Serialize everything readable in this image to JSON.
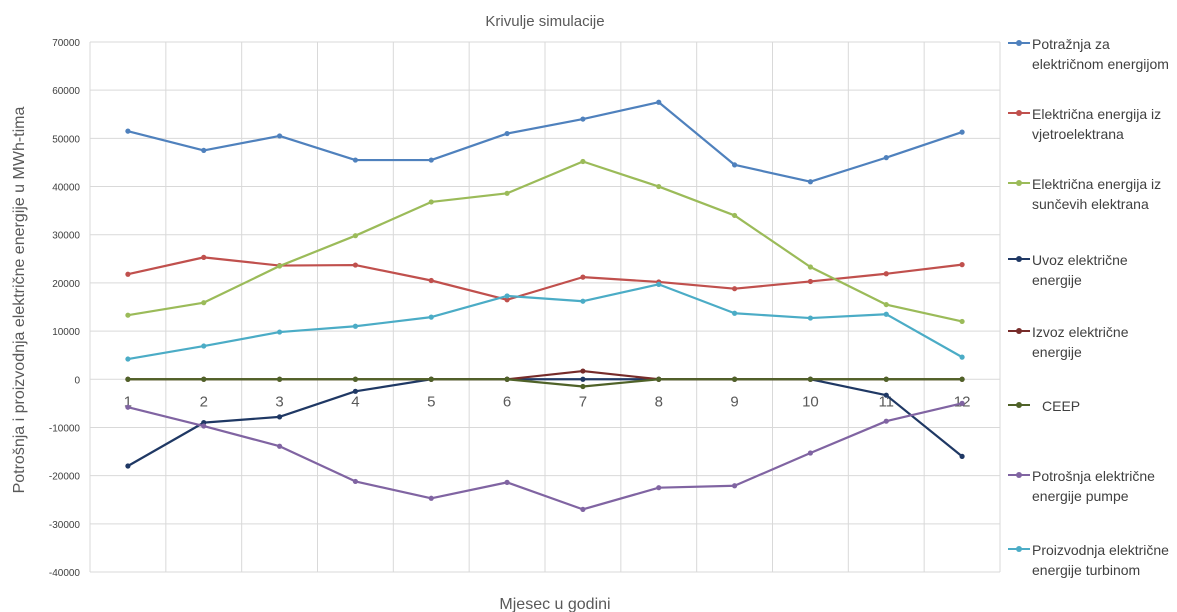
{
  "chart_data": {
    "type": "line",
    "title": "Krivulje simulacije",
    "xlabel": "Mjesec u godini",
    "ylabel": "Potrošnja  i proizvodnja električne energije u MWh-tima",
    "categories": [
      "1",
      "2",
      "3",
      "4",
      "5",
      "6",
      "7",
      "8",
      "9",
      "10",
      "11",
      "12"
    ],
    "ylim": [
      -40000,
      70000
    ],
    "yticks": [
      -40000,
      -30000,
      -20000,
      -10000,
      0,
      10000,
      20000,
      30000,
      40000,
      50000,
      60000,
      70000
    ],
    "ytick_labels": [
      "-40000",
      "-30000",
      "-20000",
      "-10000",
      "0",
      "10000",
      "20000",
      "30000",
      "40000",
      "50000",
      "60000",
      "70000"
    ],
    "grid": "both",
    "legend_position": "right",
    "series": [
      {
        "name": "Potražnja za električnom energijom",
        "color": "#4f81bd",
        "values": [
          51500,
          47500,
          50500,
          45500,
          45500,
          51000,
          54000,
          57500,
          44500,
          41000,
          46000,
          51300
        ]
      },
      {
        "name": "Električna energija iz vjetroelektrana",
        "color": "#c0504d",
        "values": [
          21800,
          25300,
          23600,
          23700,
          20500,
          16500,
          21200,
          20200,
          18800,
          20300,
          21900,
          23800
        ]
      },
      {
        "name": "Električna energija iz sunčevih elektrana",
        "color": "#9bbb59",
        "values": [
          13300,
          15900,
          23500,
          29800,
          36800,
          38600,
          45200,
          40000,
          34000,
          23300,
          15500,
          12000
        ]
      },
      {
        "name": "Uvoz električne energije",
        "color": "#1f3864",
        "values": [
          -18000,
          -9000,
          -7800,
          -2500,
          0,
          0,
          0,
          0,
          0,
          0,
          -3300,
          -16000
        ]
      },
      {
        "name": "Izvoz električne energije",
        "color": "#772c2a",
        "values": [
          0,
          0,
          0,
          0,
          0,
          0,
          1700,
          0,
          0,
          0,
          0,
          0
        ]
      },
      {
        "name": "CEEP",
        "color": "#4f6228",
        "values": [
          0,
          0,
          0,
          0,
          0,
          0,
          -1500,
          0,
          0,
          0,
          0,
          0
        ]
      },
      {
        "name": "Potrošnja električne energije pumpe",
        "color": "#8064a2",
        "values": [
          -5800,
          -9700,
          -13900,
          -21200,
          -24700,
          -21400,
          -27000,
          -22500,
          -22100,
          -15300,
          -8700,
          -5000
        ]
      },
      {
        "name": "Proizvodnja električne energije turbinom",
        "color": "#4bacc6",
        "values": [
          4200,
          6900,
          9800,
          11000,
          12900,
          17300,
          16200,
          19700,
          13700,
          12700,
          13500,
          4600
        ]
      }
    ]
  }
}
